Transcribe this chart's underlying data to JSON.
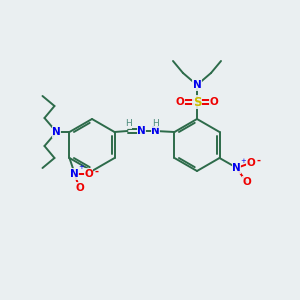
{
  "background_color": "#eaeff1",
  "bond_color": "#2d6b4a",
  "atom_colors": {
    "N": "#0000ee",
    "O": "#ee0000",
    "S": "#ccbb00",
    "H_label": "#4a8a7a",
    "C": "#2d6b4a"
  },
  "figsize": [
    3.0,
    3.0
  ],
  "dpi": 100
}
